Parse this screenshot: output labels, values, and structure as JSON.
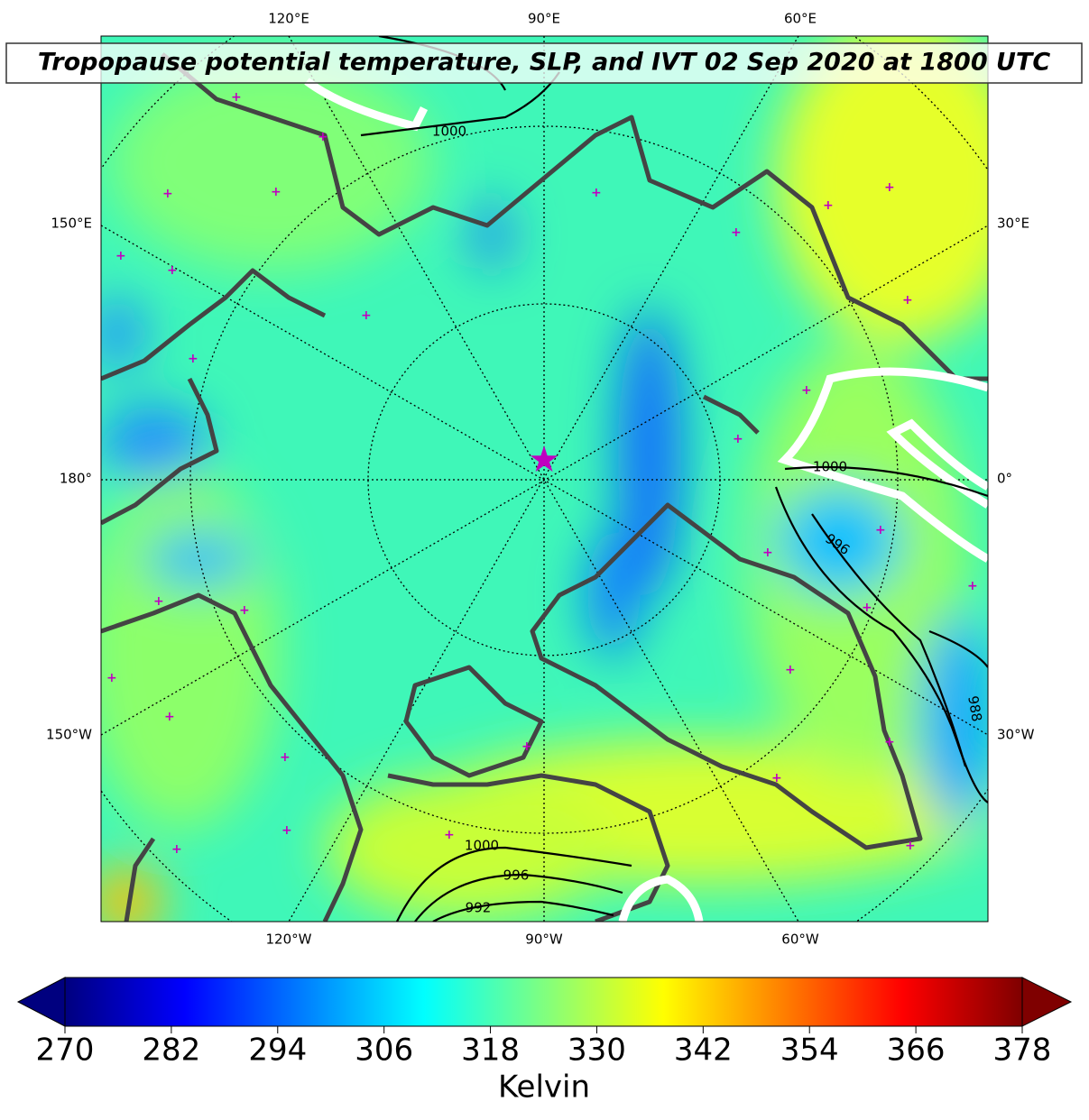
{
  "title": "Tropopause potential temperature, SLP, and IVT 02 Sep 2020 at 1800 UTC",
  "map": {
    "lon_labels_top": [
      "120°E",
      "90°E",
      "60°E"
    ],
    "lon_labels_left": [
      "150°E",
      "180°",
      "150°W"
    ],
    "lon_labels_right": [
      "30°E",
      "0°",
      "30°W"
    ],
    "lon_labels_bottom": [
      "120°W",
      "90°W",
      "60°W"
    ],
    "contour_labels": [
      1000,
      1000,
      996,
      988,
      1000,
      996,
      992
    ]
  },
  "colorbar": {
    "label": "Kelvin",
    "lim": [
      270,
      378
    ],
    "ticks": [
      270,
      282,
      294,
      306,
      318,
      330,
      342,
      354,
      366,
      378
    ]
  }
}
